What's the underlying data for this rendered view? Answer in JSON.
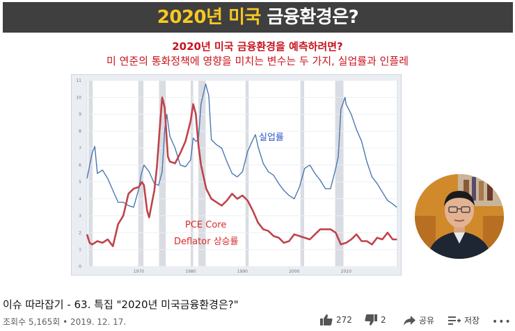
{
  "video": {
    "banner": {
      "part1": "2020년 ",
      "part2": "미국",
      "part3": " 금융환경은?"
    },
    "subtitle1": "2020년 미국 금융환경을 예측하려면?",
    "subtitle2": "미 연준의 통화정책에 영향을 미치는 변수는 두 가지, 실업률과 인플레",
    "chart_data": {
      "type": "line",
      "title": "",
      "xlabel": "",
      "ylabel": "",
      "xlim": [
        1960,
        2019.9
      ],
      "ylim": [
        0,
        11
      ],
      "x_ticks": [
        "1970",
        "1980",
        "1990",
        "2000",
        "2010"
      ],
      "y_ticks": [
        "0",
        "1",
        "2",
        "3",
        "4",
        "5",
        "6",
        "7",
        "8",
        "9",
        "10",
        "11"
      ],
      "recessions": [
        [
          1960.3,
          1961.1
        ],
        [
          1969.9,
          1970.9
        ],
        [
          1973.9,
          1975.2
        ],
        [
          1980.0,
          1980.5
        ],
        [
          1981.5,
          1982.9
        ],
        [
          1990.6,
          1991.2
        ],
        [
          2001.2,
          2001.9
        ],
        [
          2007.9,
          2009.5
        ]
      ],
      "series": [
        {
          "name": "실업률",
          "color": "#4a78b0",
          "x": [
            1960,
            1961,
            1961.5,
            1962,
            1963,
            1964,
            1965,
            1966,
            1967,
            1968,
            1969,
            1970,
            1970.5,
            1971,
            1972,
            1973,
            1973.8,
            1974.5,
            1975,
            1975.4,
            1976,
            1977,
            1978,
            1979,
            1980,
            1980.5,
            1981,
            1981.5,
            1982,
            1982.9,
            1983.5,
            1984,
            1985,
            1986,
            1987,
            1988,
            1989,
            1990,
            1991,
            1992,
            1992.5,
            1993,
            1994,
            1995,
            1996,
            1997,
            1998,
            1999,
            2000,
            2001,
            2002,
            2003,
            2004,
            2005,
            2006,
            2007,
            2008,
            2008.5,
            2009,
            2009.8,
            2010,
            2011,
            2012,
            2013,
            2014,
            2015,
            2016,
            2017,
            2018,
            2019,
            2019.8
          ],
          "values": [
            5.2,
            6.7,
            7.1,
            5.5,
            5.7,
            5.2,
            4.5,
            3.8,
            3.8,
            3.6,
            3.5,
            4.6,
            5.5,
            6.0,
            5.6,
            4.9,
            4.8,
            5.6,
            8.1,
            9.0,
            7.7,
            7.0,
            6.0,
            5.9,
            6.3,
            7.6,
            7.4,
            7.5,
            9.6,
            10.8,
            10.1,
            7.5,
            7.2,
            7.0,
            6.2,
            5.5,
            5.3,
            5.6,
            6.8,
            7.5,
            7.8,
            7.1,
            6.1,
            5.6,
            5.4,
            4.9,
            4.5,
            4.2,
            4.0,
            4.7,
            5.8,
            6.0,
            5.5,
            5.1,
            4.6,
            4.6,
            5.8,
            6.5,
            9.3,
            10.0,
            9.6,
            9.0,
            8.1,
            7.4,
            6.2,
            5.3,
            4.9,
            4.4,
            3.9,
            3.7,
            3.5
          ]
        },
        {
          "name": "PCE Core Deflator 상승률",
          "color": "#c0424a",
          "x": [
            1960,
            1960.5,
            1961,
            1962,
            1963,
            1964,
            1965,
            1966,
            1967,
            1968,
            1969,
            1970,
            1970.6,
            1971,
            1971.6,
            1972,
            1973,
            1973.5,
            1974,
            1974.5,
            1975,
            1975.6,
            1976,
            1977,
            1978,
            1979,
            1980,
            1980.5,
            1981,
            1981.5,
            1982,
            1983,
            1984,
            1985,
            1986,
            1987,
            1988,
            1989,
            1990,
            1991,
            1992,
            1993,
            1994,
            1995,
            1996,
            1997,
            1998,
            1999,
            2000,
            2001,
            2002,
            2003,
            2004,
            2005,
            2006,
            2007,
            2008,
            2009,
            2010,
            2011,
            2012,
            2013,
            2014,
            2015,
            2016,
            2017,
            2018,
            2019,
            2019.8
          ],
          "values": [
            1.9,
            1.4,
            1.3,
            1.5,
            1.4,
            1.6,
            1.2,
            2.5,
            3.0,
            4.3,
            4.6,
            4.7,
            5.0,
            4.8,
            3.3,
            2.9,
            4.5,
            5.9,
            8.0,
            10.0,
            9.4,
            6.5,
            6.2,
            6.1,
            6.7,
            7.4,
            8.6,
            9.6,
            9.0,
            7.2,
            6.0,
            4.6,
            4.0,
            3.8,
            3.6,
            3.9,
            4.3,
            4.0,
            4.2,
            3.9,
            3.3,
            2.6,
            2.2,
            2.1,
            1.8,
            1.7,
            1.4,
            1.5,
            1.9,
            1.8,
            1.7,
            1.6,
            1.9,
            2.2,
            2.2,
            2.2,
            2.0,
            1.3,
            1.4,
            1.6,
            1.9,
            1.5,
            1.5,
            1.3,
            1.7,
            1.6,
            2.0,
            1.6,
            1.6
          ]
        }
      ]
    },
    "label_unemployment": "실업률",
    "label_pce_line1": "PCE Core",
    "label_pce_line2": "Deflator 상승률"
  },
  "info": {
    "title": "이슈 따라잡기 - 63. 특집 \"2020년 미국금융환경은?\"",
    "views_date": "조회수 5,165회 • 2019. 12. 17.",
    "likes": "272",
    "dislikes": "2",
    "share_label": "공유",
    "save_label": "저장",
    "more_label": "•••"
  },
  "icons": [
    "thumbs-up-icon",
    "thumbs-down-icon",
    "share-icon",
    "save-playlist-icon",
    "more-icon"
  ]
}
